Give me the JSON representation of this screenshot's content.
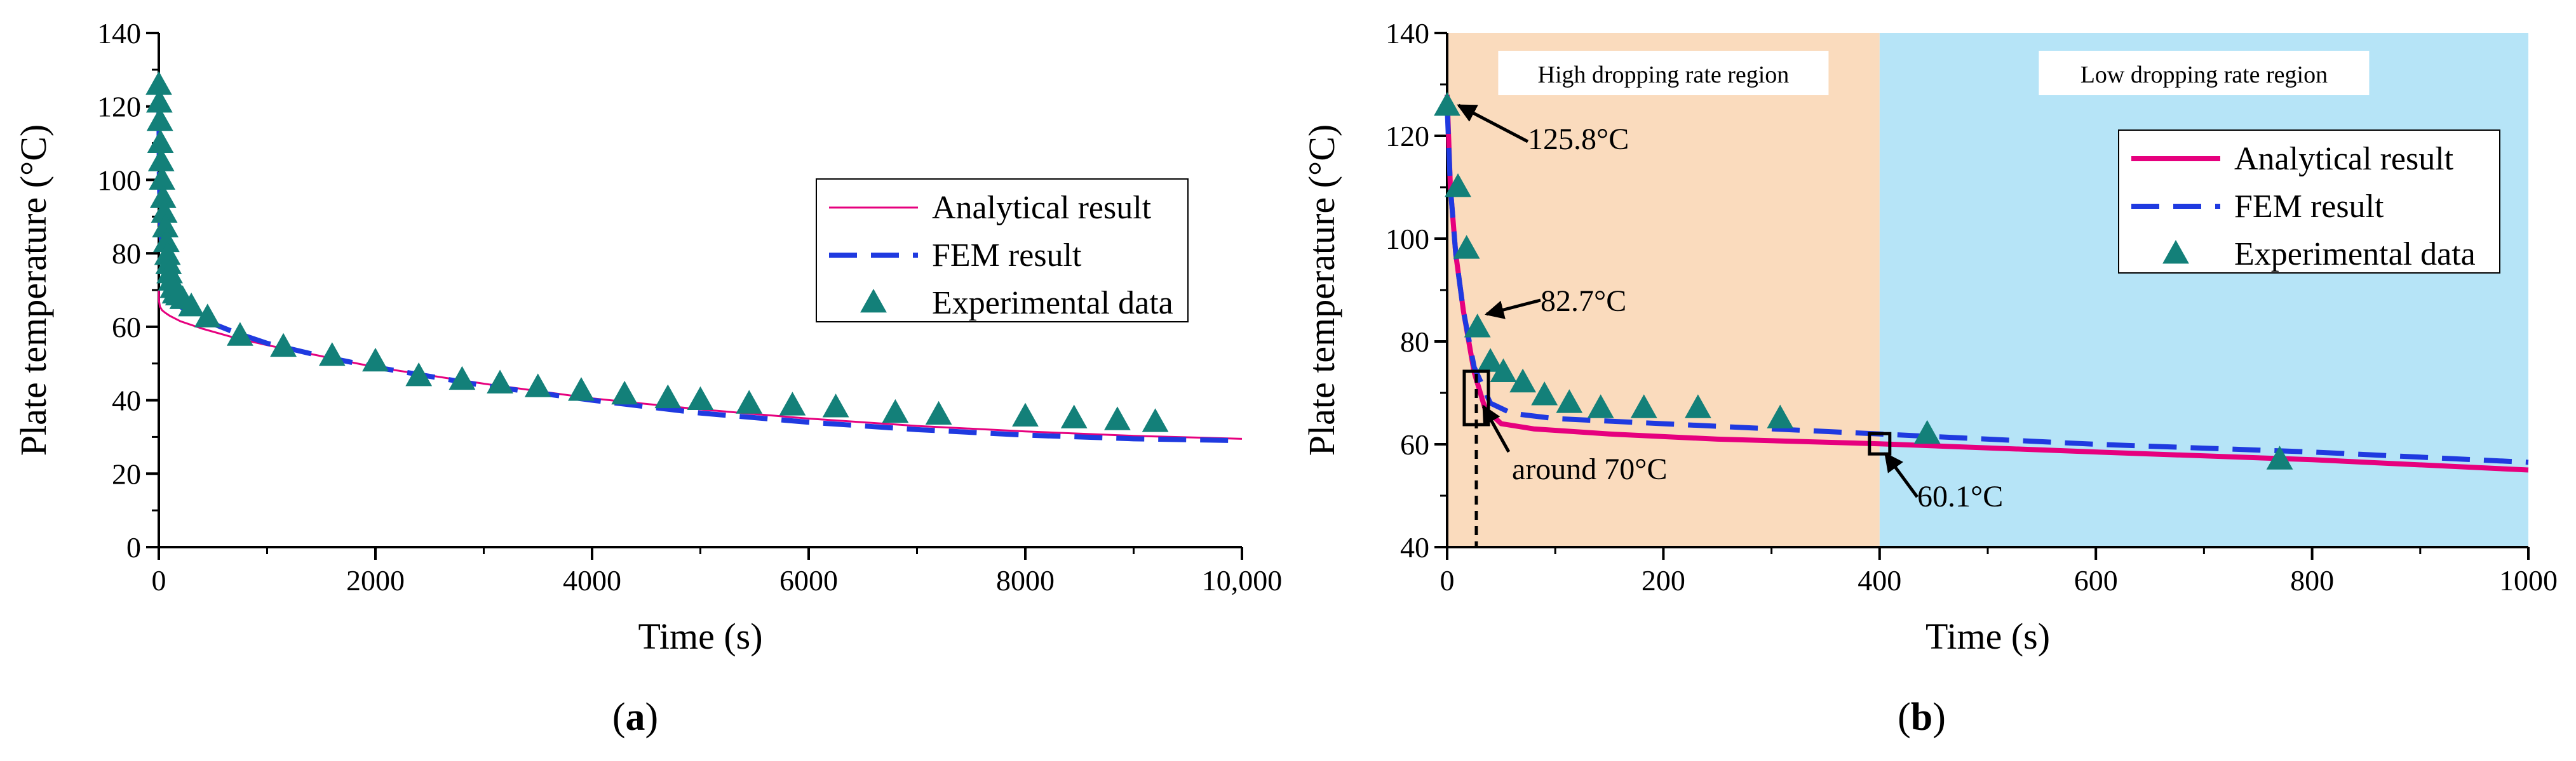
{
  "colors": {
    "analytical": "#e6007e",
    "fem": "#1f3ae0",
    "experimental": "#138079",
    "region_high": "#fadbbd",
    "region_low": "#b6e4f7",
    "axis": "#000000"
  },
  "chart_data": [
    {
      "panel": "a",
      "type": "line",
      "panel_label": [
        "(",
        "a",
        ")"
      ],
      "xlabel": "Time (s)",
      "ylabel": "Plate temperature (°C)",
      "xlim": [
        0,
        10000
      ],
      "ylim": [
        0,
        140
      ],
      "xticks": [
        0,
        2000,
        4000,
        6000,
        8000,
        10000
      ],
      "xtick_labels": [
        "0",
        "2000",
        "4000",
        "6000",
        "8000",
        "10,000"
      ],
      "yticks": [
        0,
        20,
        40,
        60,
        80,
        100,
        120,
        140
      ],
      "ytick_labels": [
        "0",
        "20",
        "40",
        "60",
        "80",
        "100",
        "120",
        "140"
      ],
      "legend": [
        "Analytical result",
        "FEM result",
        "Experimental data"
      ],
      "legend_position": "center-right",
      "series": [
        {
          "name": "Analytical result",
          "style": "thin-solid",
          "x": [
            0,
            2,
            10,
            30,
            60,
            100,
            200,
            400,
            700,
            1000,
            1500,
            2000,
            3000,
            4000,
            5000,
            6000,
            7000,
            8000,
            9000,
            10000
          ],
          "y": [
            70,
            67,
            65.5,
            64.5,
            63.8,
            63,
            61.5,
            59.5,
            57,
            55,
            52,
            49,
            44.5,
            40.5,
            37.5,
            35,
            33,
            31.5,
            30.3,
            29.5
          ]
        },
        {
          "name": "FEM result",
          "style": "dashed",
          "x": [
            0,
            5,
            20,
            50,
            100,
            200,
            400,
            700,
            1000,
            1500,
            2000,
            3000,
            4000,
            5000,
            6000,
            7000,
            8000,
            9000,
            10000
          ],
          "y": [
            125,
            100,
            85,
            74,
            69,
            65.5,
            62,
            58.5,
            55.5,
            52,
            49,
            44,
            40,
            36.5,
            34,
            32,
            30.5,
            29.5,
            29
          ]
        },
        {
          "name": "Experimental data",
          "style": "triangles",
          "x": [
            0,
            5,
            10,
            15,
            22,
            30,
            40,
            50,
            60,
            70,
            80,
            90,
            100,
            115,
            130,
            150,
            180,
            220,
            300,
            450,
            750,
            1150,
            1600,
            2000,
            2400,
            2800,
            3150,
            3500,
            3900,
            4300,
            4700,
            5000,
            5450,
            5850,
            6250,
            6800,
            7200,
            8000,
            8450,
            8850,
            9200
          ],
          "y": [
            125.8,
            121,
            116,
            110,
            105,
            100,
            95,
            91,
            87,
            83,
            79.5,
            77,
            74.5,
            72.5,
            70.5,
            69,
            68.5,
            67.5,
            65.5,
            62.5,
            57.5,
            54.5,
            52,
            50.5,
            46.5,
            45.5,
            44.5,
            43.5,
            42.5,
            41.5,
            40.5,
            40,
            39,
            38.5,
            38,
            36.5,
            36,
            35.5,
            35,
            34.5,
            34
          ]
        }
      ]
    },
    {
      "panel": "b",
      "type": "line",
      "panel_label": [
        "(",
        "b",
        ")"
      ],
      "xlabel": "Time (s)",
      "ylabel": "Plate temperature (°C)",
      "xlim": [
        0,
        1000
      ],
      "ylim": [
        40,
        140
      ],
      "xticks": [
        0,
        200,
        400,
        600,
        800,
        1000
      ],
      "xtick_labels": [
        "0",
        "200",
        "400",
        "600",
        "800",
        "1000"
      ],
      "yticks": [
        40,
        60,
        80,
        100,
        120,
        140
      ],
      "ytick_labels": [
        "40",
        "60",
        "80",
        "100",
        "120",
        "140"
      ],
      "legend": [
        "Analytical result",
        "FEM result",
        "Experimental data"
      ],
      "legend_position": "top-right",
      "regions": [
        {
          "label": "High dropping rate region",
          "x0": 0,
          "x1": 400
        },
        {
          "label": "Low dropping rate region",
          "x0": 400,
          "x1": 1000
        }
      ],
      "annotations": [
        {
          "text": "125.8°C",
          "x": 0,
          "y": 125.8
        },
        {
          "text": "82.7°C",
          "x": 28,
          "y": 82.7
        },
        {
          "text": "around 70°C",
          "x": 27,
          "y": 70
        },
        {
          "text": "60.1°C",
          "x": 400,
          "y": 60.1
        }
      ],
      "series": [
        {
          "name": "Analytical result",
          "style": "thick-solid",
          "x": [
            0,
            3,
            8,
            15,
            25,
            35,
            50,
            80,
            150,
            250,
            400,
            600,
            800,
            1000
          ],
          "y": [
            128,
            110,
            97,
            86,
            74,
            67,
            64,
            63,
            62,
            61,
            60.1,
            58.5,
            57,
            55
          ]
        },
        {
          "name": "FEM result",
          "style": "dashed",
          "x": [
            0,
            3,
            8,
            15,
            25,
            40,
            60,
            100,
            200,
            300,
            400,
            600,
            800,
            1000
          ],
          "y": [
            125.8,
            110,
            97,
            86,
            75,
            68,
            66,
            65,
            64,
            63,
            62,
            60,
            58.5,
            56.5
          ]
        },
        {
          "name": "Experimental data",
          "style": "triangles",
          "x": [
            0,
            10,
            18,
            28,
            40,
            52,
            70,
            90,
            113,
            142,
            182,
            232,
            308,
            444,
            770
          ],
          "y": [
            125.8,
            110,
            98,
            82.7,
            76,
            74,
            72,
            69.5,
            68,
            67,
            67,
            67,
            65,
            62,
            57
          ]
        }
      ]
    }
  ]
}
